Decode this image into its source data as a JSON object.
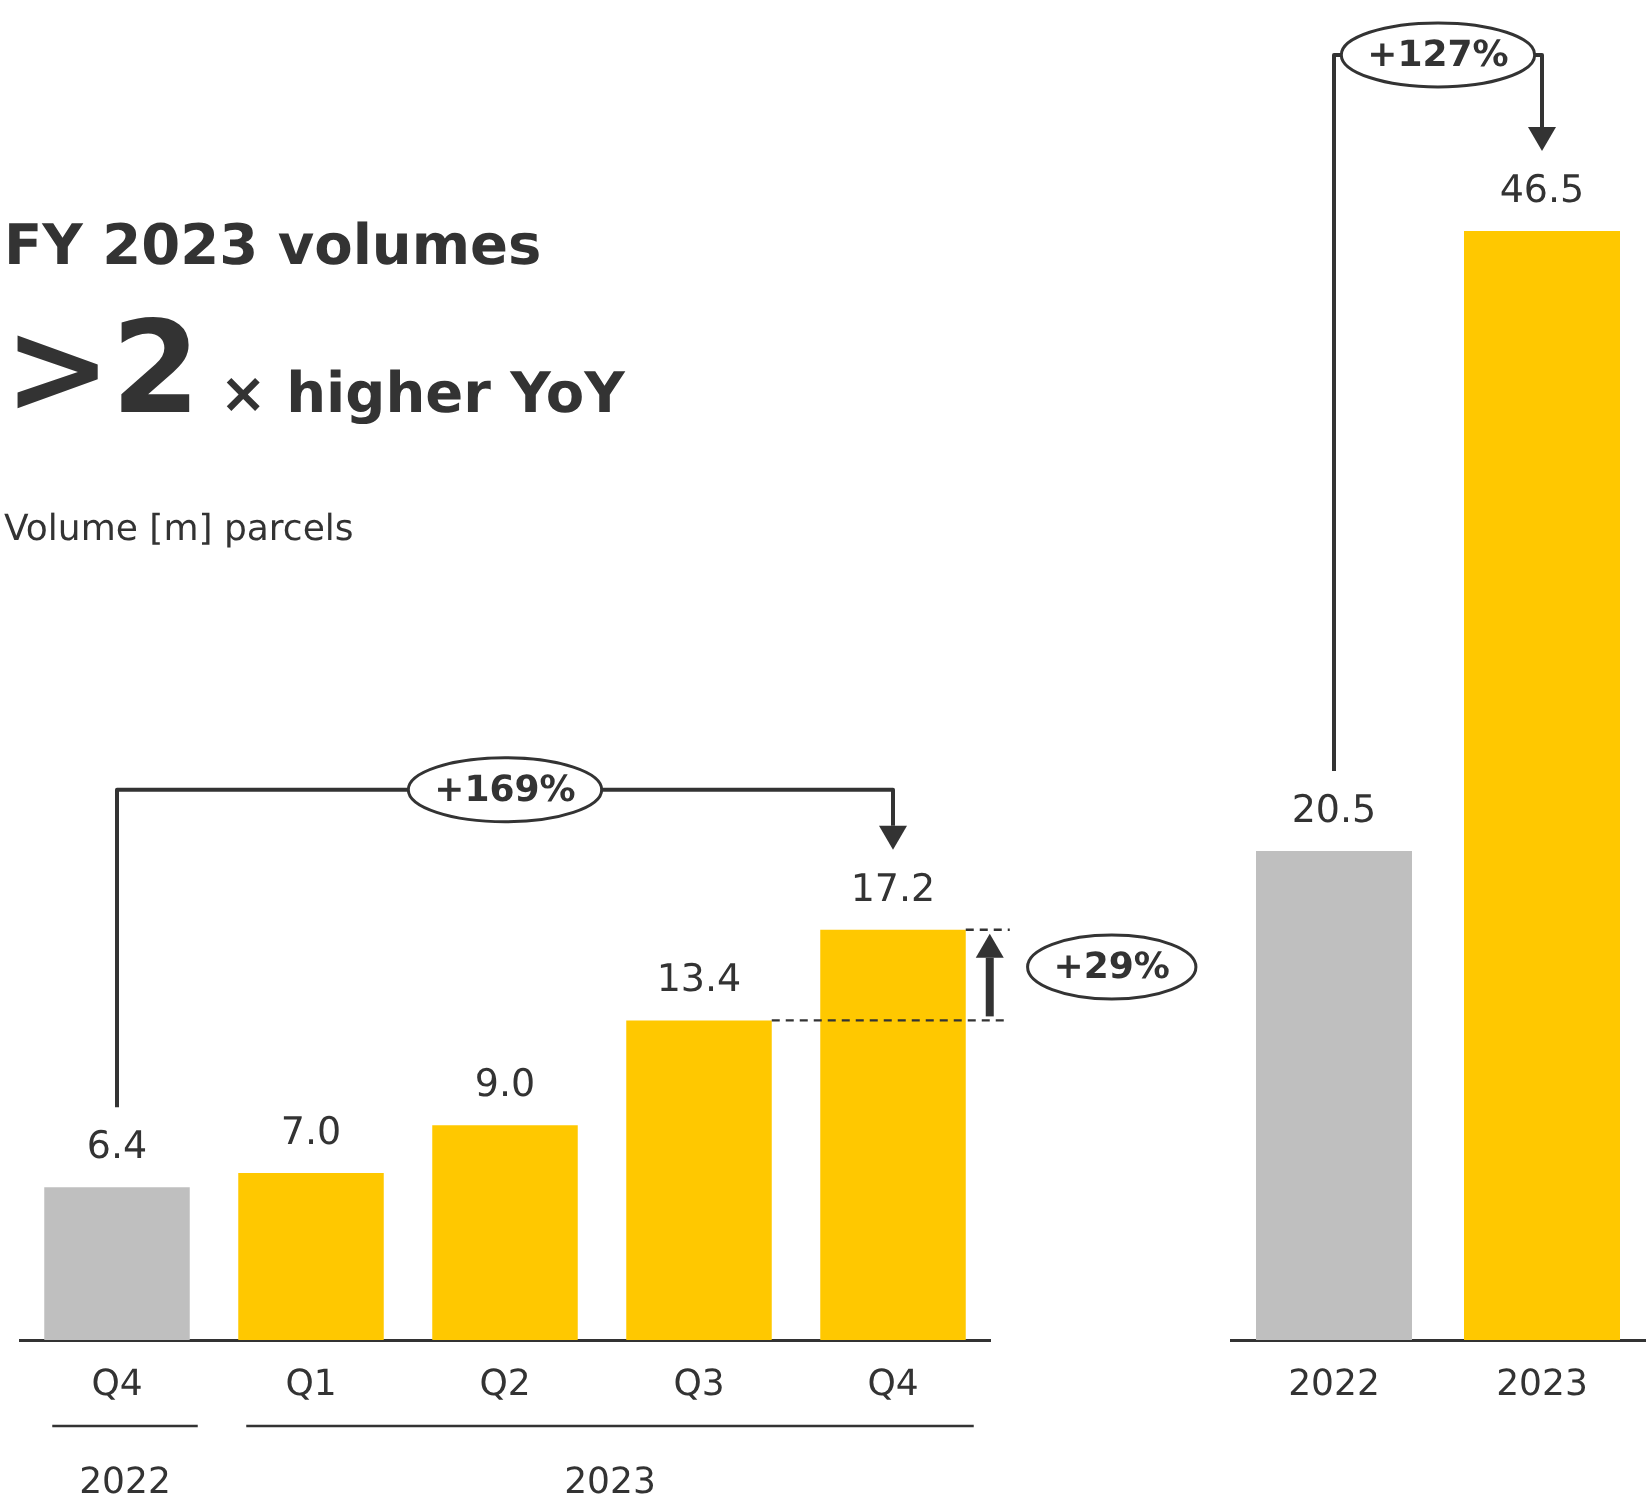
{
  "chart_data": [
    {
      "type": "bar",
      "title": "FY 2023 volumes",
      "subtitle": ">2× higher YoY",
      "categories": [
        "Q4",
        "Q1",
        "Q2",
        "Q3",
        "Q4"
      ],
      "values": [
        6.4,
        7.0,
        9.0,
        13.4,
        17.2
      ],
      "value_labels": [
        "6.4",
        "7.0",
        "9.0",
        "13.4",
        "17.2"
      ],
      "colors": [
        "#bfbfbf",
        "#ffc800",
        "#ffc800",
        "#ffc800",
        "#ffc800"
      ],
      "tick_labels": "x",
      "grid": false,
      "legend": false,
      "annotations": [
        "+169%",
        "+29%",
        "2022",
        "2023",
        "Volume [m] parcels"
      ]
    },
    {
      "type": "bar",
      "categories": [
        "2022",
        "2023"
      ],
      "values": [
        20.5,
        46.5
      ],
      "value_labels": [
        "20.5",
        "46.5"
      ],
      "colors": [
        "#bfbfbf",
        "#ffc800"
      ],
      "tick_labels": "x",
      "grid": false,
      "legend": false,
      "annotations": [
        "+127%"
      ]
    }
  ]
}
